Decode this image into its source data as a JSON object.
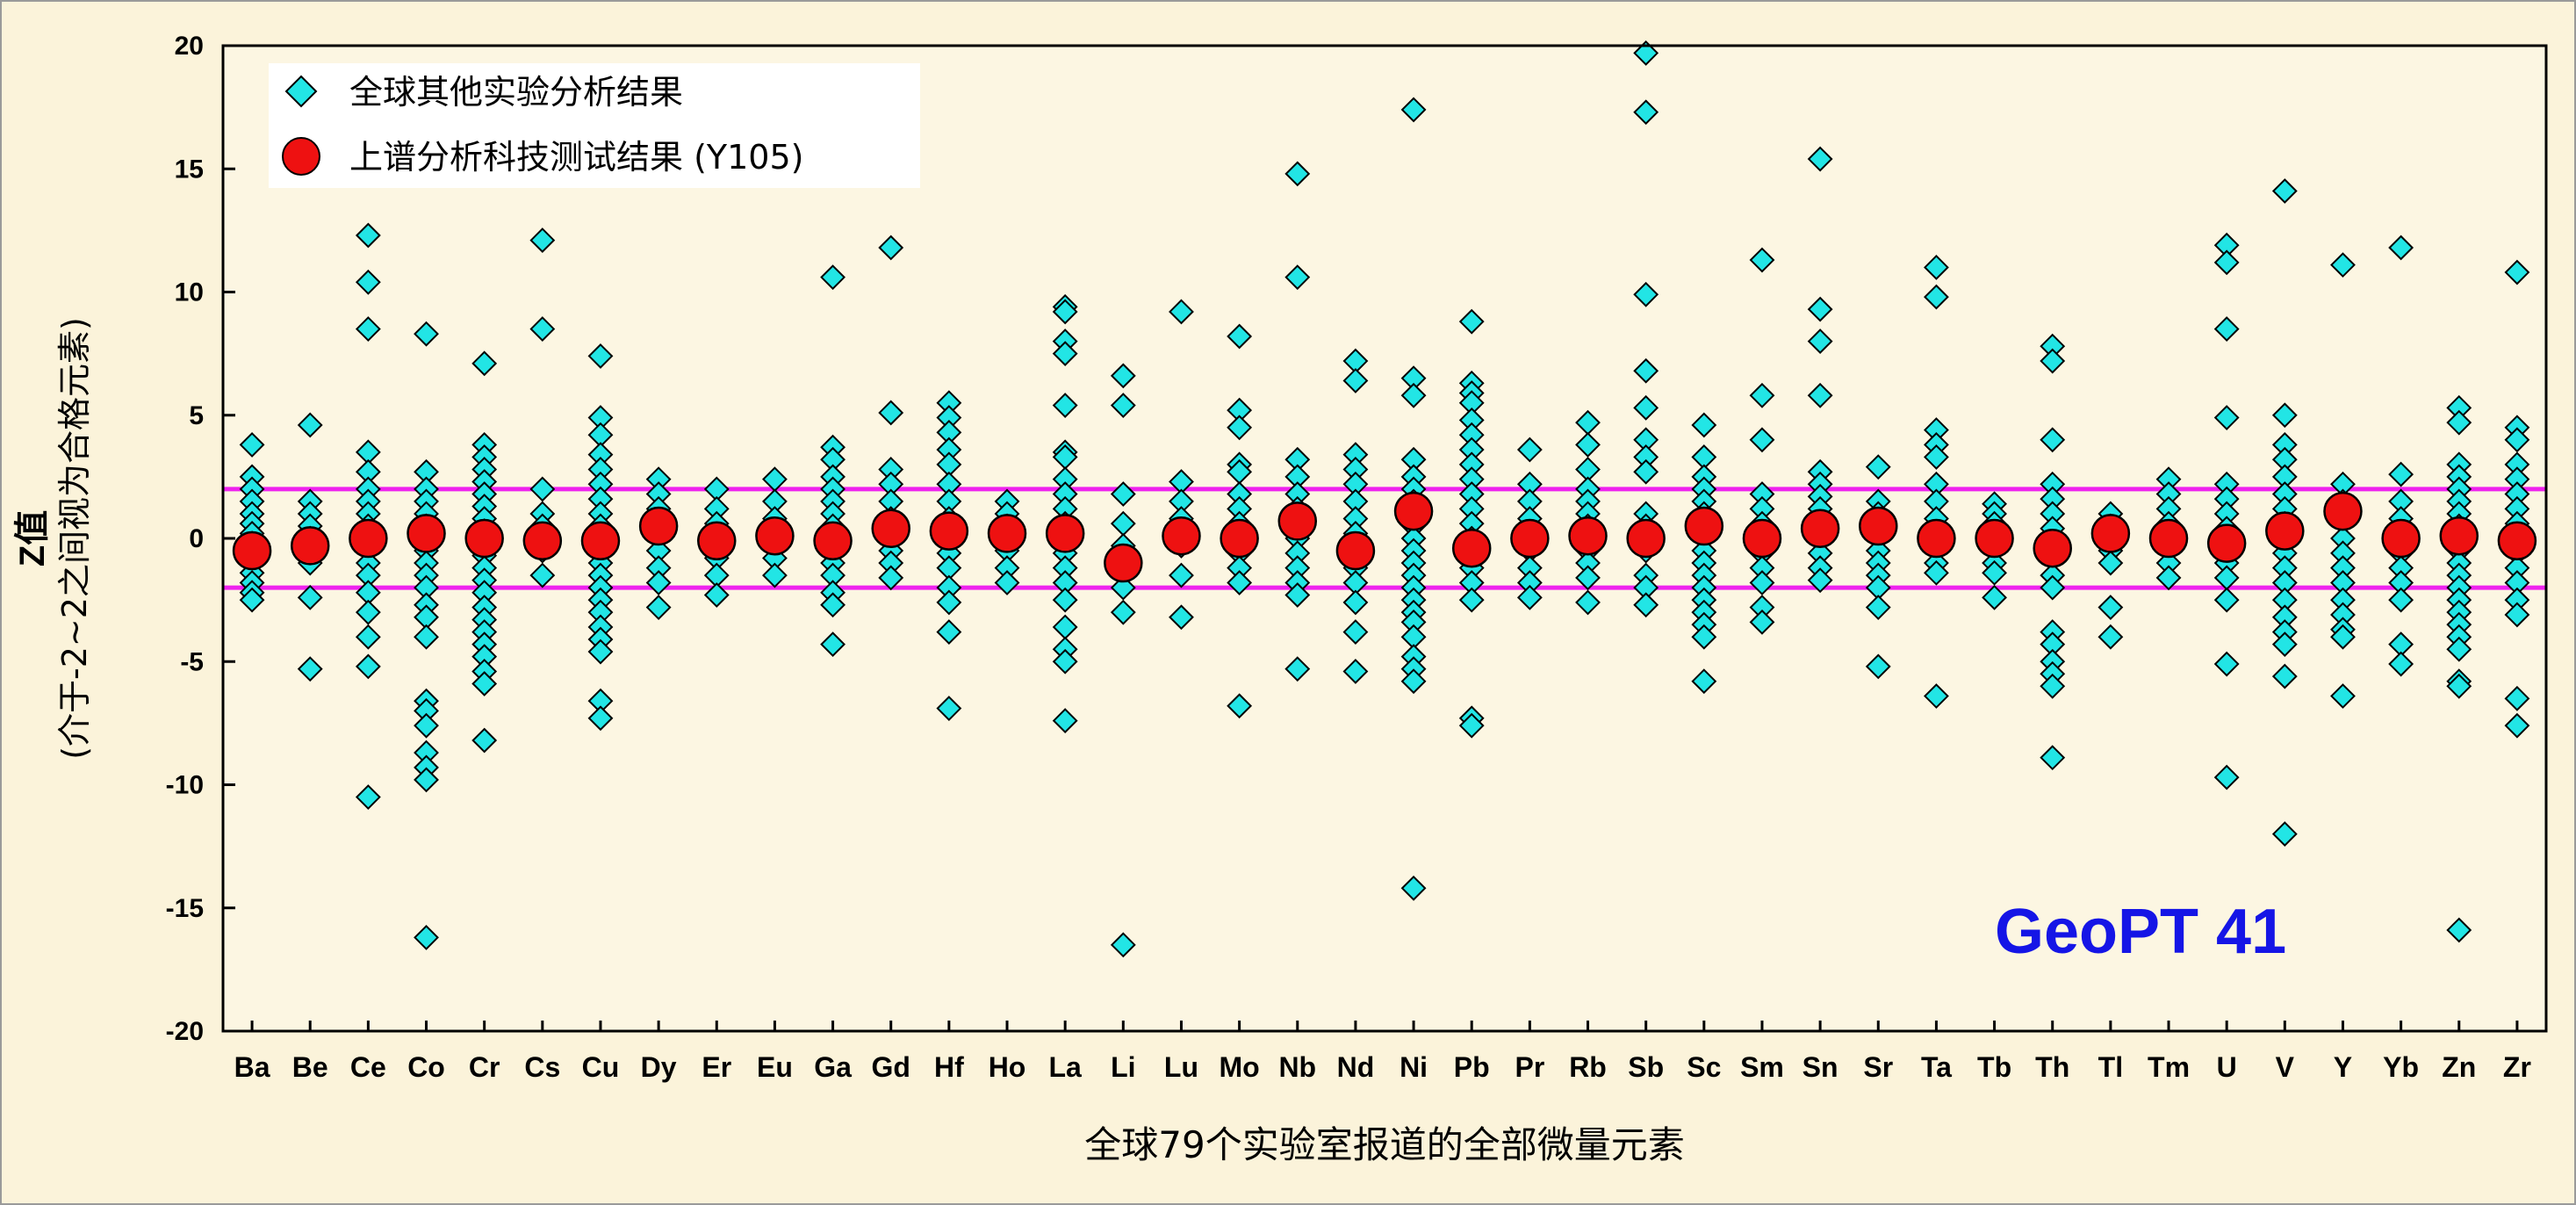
{
  "chart_data": {
    "type": "scatter",
    "xlabel": "全球79个实验室报道的全部微量元素",
    "ylabel_line1": "Z值",
    "ylabel_line2": "(介于-2~2之间视为合格元素)",
    "ylim": [
      -20,
      20
    ],
    "yticks": [
      20,
      15,
      10,
      5,
      0,
      -5,
      -10,
      -15,
      -20
    ],
    "tick_labels": [
      "20",
      "15",
      "10",
      "5",
      "0",
      "-5",
      "-10",
      "-15",
      "-20"
    ],
    "reference_lines": [
      2,
      -2
    ],
    "reference_color": "#ee22ee",
    "annotation": "GeoPT 41",
    "categories": [
      "Ba",
      "Be",
      "Ce",
      "Co",
      "Cr",
      "Cs",
      "Cu",
      "Dy",
      "Er",
      "Eu",
      "Ga",
      "Gd",
      "Hf",
      "Ho",
      "La",
      "Li",
      "Lu",
      "Mo",
      "Nb",
      "Nd",
      "Ni",
      "Pb",
      "Pr",
      "Rb",
      "Sb",
      "Sc",
      "Sm",
      "Sn",
      "Sr",
      "Ta",
      "Tb",
      "Th",
      "Tl",
      "Tm",
      "U",
      "V",
      "Y",
      "Yb",
      "Zn",
      "Zr"
    ],
    "series": [
      {
        "name": "全球其他实验分析结果",
        "marker": "diamond",
        "color": "#22e5e5",
        "values": [
          [
            3.8,
            2.5,
            2.0,
            1.5,
            1.0,
            0.6,
            0.2,
            -0.2,
            -0.6,
            -1.0,
            -1.4,
            -1.8,
            -2.2,
            -2.5
          ],
          [
            4.6,
            1.5,
            1.0,
            0.5,
            0.0,
            -0.5,
            -1.0,
            -2.4,
            -5.3
          ],
          [
            12.3,
            10.4,
            8.5,
            3.5,
            2.7,
            2.0,
            1.5,
            1.0,
            0.5,
            0.0,
            -0.5,
            -1.0,
            -1.5,
            -2.2,
            -3.0,
            -4.0,
            -5.2,
            -10.5
          ],
          [
            8.3,
            2.7,
            2.0,
            1.5,
            1.0,
            0.5,
            0.0,
            -0.5,
            -1.0,
            -1.5,
            -2.0,
            -2.7,
            -3.2,
            -4.0,
            -6.6,
            -7.0,
            -7.6,
            -8.7,
            -9.3,
            -9.8,
            -16.2
          ],
          [
            7.1,
            3.8,
            3.3,
            2.8,
            2.3,
            1.8,
            1.3,
            0.8,
            0.3,
            -0.2,
            -0.7,
            -1.2,
            -1.7,
            -2.2,
            -2.8,
            -3.3,
            -3.8,
            -4.3,
            -4.8,
            -5.4,
            -5.9,
            -8.2
          ],
          [
            12.1,
            8.5,
            2.0,
            1.0,
            0.5,
            -0.5,
            -1.5
          ],
          [
            7.4,
            4.9,
            4.2,
            3.4,
            2.8,
            2.2,
            1.6,
            1.0,
            0.5,
            0.0,
            -0.5,
            -1.0,
            -1.5,
            -2.0,
            -2.5,
            -3.0,
            -3.6,
            -4.1,
            -4.6,
            -6.6,
            -7.3
          ],
          [
            2.4,
            1.8,
            1.2,
            0.5,
            -0.5,
            -1.2,
            -1.8,
            -2.8
          ],
          [
            2.0,
            1.2,
            0.6,
            -0.2,
            -0.8,
            -1.5,
            -2.3
          ],
          [
            2.4,
            1.5,
            0.8,
            -0.3,
            -0.8,
            -1.5
          ],
          [
            10.6,
            3.7,
            3.2,
            2.5,
            2.0,
            1.5,
            1.0,
            0.5,
            0.0,
            -0.5,
            -1.0,
            -1.5,
            -2.2,
            -2.7,
            -4.3
          ],
          [
            11.8,
            5.1,
            2.8,
            2.2,
            1.5,
            0.8,
            0.2,
            -0.5,
            -1.0,
            -1.6
          ],
          [
            5.5,
            4.9,
            4.3,
            3.6,
            3.0,
            2.2,
            1.5,
            0.8,
            0.2,
            -0.6,
            -1.2,
            -2.0,
            -2.6,
            -3.8,
            -6.9
          ],
          [
            1.5,
            1.0,
            0.5,
            -0.5,
            -1.2,
            -1.8
          ],
          [
            9.4,
            9.2,
            8.0,
            7.5,
            5.4,
            3.5,
            3.3,
            2.4,
            1.8,
            1.2,
            0.6,
            0.0,
            -0.6,
            -1.2,
            -1.8,
            -2.5,
            -3.6,
            -4.5,
            -5.0,
            -7.4
          ],
          [
            6.6,
            5.4,
            1.8,
            0.6,
            -0.3,
            -1.2,
            -2.0,
            -3.0,
            -16.5
          ],
          [
            9.2,
            2.3,
            1.5,
            0.8,
            -0.3,
            -1.5,
            -3.2
          ],
          [
            8.2,
            5.2,
            4.5,
            3.0,
            2.7,
            1.8,
            1.2,
            0.6,
            0.0,
            -0.6,
            -1.2,
            -1.8,
            -6.8
          ],
          [
            14.8,
            10.6,
            3.2,
            2.5,
            1.8,
            1.2,
            0.6,
            0.0,
            -0.6,
            -1.2,
            -1.8,
            -2.3,
            -5.3
          ],
          [
            7.2,
            6.4,
            3.4,
            2.8,
            2.2,
            1.5,
            0.8,
            0.2,
            -0.5,
            -1.2,
            -1.8,
            -2.6,
            -3.8,
            -5.4
          ],
          [
            17.4,
            6.5,
            5.8,
            3.2,
            2.5,
            2.0,
            1.5,
            1.0,
            0.5,
            0.0,
            -0.5,
            -1.0,
            -1.5,
            -2.0,
            -2.5,
            -3.0,
            -3.4,
            -4.0,
            -4.8,
            -5.3,
            -5.8,
            -14.2
          ],
          [
            8.8,
            6.3,
            5.9,
            5.5,
            4.8,
            4.2,
            3.6,
            3.0,
            2.4,
            1.8,
            1.2,
            0.6,
            0.0,
            -0.6,
            -1.2,
            -1.8,
            -2.5,
            -7.3,
            -7.6
          ],
          [
            3.6,
            2.2,
            1.5,
            0.8,
            0.2,
            -0.5,
            -1.2,
            -1.8,
            -2.4
          ],
          [
            4.7,
            3.8,
            2.8,
            2.0,
            1.5,
            1.0,
            0.5,
            0.0,
            -0.5,
            -1.0,
            -1.6,
            -2.6
          ],
          [
            19.7,
            17.3,
            9.9,
            6.8,
            5.3,
            4.0,
            3.3,
            2.7,
            1.0,
            0.5,
            0.0,
            -0.5,
            -1.5,
            -2.0,
            -2.7
          ],
          [
            4.6,
            3.3,
            2.5,
            2.0,
            1.5,
            1.0,
            0.5,
            0.0,
            -0.5,
            -1.0,
            -1.5,
            -2.0,
            -2.5,
            -3.0,
            -3.5,
            -4.0,
            -5.8
          ],
          [
            11.3,
            5.8,
            4.0,
            1.8,
            1.2,
            0.6,
            -0.6,
            -1.2,
            -1.8,
            -2.8,
            -3.4
          ],
          [
            15.4,
            9.3,
            8.0,
            5.8,
            2.7,
            2.2,
            1.7,
            1.2,
            0.6,
            0.0,
            -0.6,
            -1.2,
            -1.7
          ],
          [
            2.9,
            1.5,
            1.0,
            0.0,
            -0.5,
            -1.0,
            -1.5,
            -2.0,
            -2.8,
            -5.2
          ],
          [
            11.0,
            9.8,
            4.4,
            3.8,
            3.3,
            2.2,
            1.5,
            0.8,
            0.2,
            -0.4,
            -1.0,
            -1.4,
            -6.4
          ],
          [
            1.4,
            1.0,
            0.6,
            0.0,
            -0.5,
            -1.0,
            -1.4,
            -2.4
          ],
          [
            7.8,
            7.2,
            4.0,
            2.2,
            1.6,
            1.0,
            0.4,
            -0.2,
            -0.8,
            -1.5,
            -2.0,
            -3.8,
            -4.3,
            -5.0,
            -5.5,
            -6.0,
            -8.9
          ],
          [
            1.0,
            0.5,
            -0.5,
            -1.0,
            -2.8,
            -4.0
          ],
          [
            2.4,
            1.8,
            1.2,
            0.6,
            -0.4,
            -1.0,
            -1.6
          ],
          [
            11.9,
            11.2,
            8.5,
            4.9,
            2.2,
            1.6,
            1.0,
            0.4,
            -0.3,
            -1.0,
            -1.6,
            -2.5,
            -5.1,
            -9.7
          ],
          [
            14.1,
            5.0,
            3.8,
            3.2,
            2.5,
            1.8,
            1.2,
            0.6,
            0.0,
            -0.6,
            -1.2,
            -1.8,
            -2.5,
            -3.2,
            -3.8,
            -4.3,
            -5.6,
            -12.0
          ],
          [
            11.1,
            2.2,
            1.5,
            0.8,
            0.0,
            -0.6,
            -1.2,
            -1.8,
            -2.5,
            -3.1,
            -3.7,
            -4.0,
            -6.4
          ],
          [
            11.8,
            2.6,
            1.5,
            0.8,
            0.0,
            -0.6,
            -1.2,
            -1.8,
            -2.5,
            -4.3,
            -5.1
          ],
          [
            5.3,
            4.7,
            3.0,
            2.5,
            2.0,
            1.5,
            1.0,
            0.5,
            0.0,
            -0.5,
            -1.0,
            -1.5,
            -2.0,
            -2.5,
            -3.0,
            -3.5,
            -4.0,
            -4.5,
            -5.8,
            -6.0,
            -15.9
          ],
          [
            10.8,
            4.5,
            4.0,
            3.0,
            2.4,
            1.8,
            1.2,
            0.6,
            0.0,
            -0.6,
            -1.2,
            -1.8,
            -2.5,
            -3.1,
            -6.5,
            -7.6
          ]
        ]
      },
      {
        "name": "上谱分析科技测试结果 (Y105)",
        "marker": "circle",
        "color": "#ee1111",
        "values": [
          -0.5,
          -0.3,
          0.0,
          0.2,
          0.0,
          -0.1,
          -0.1,
          0.5,
          -0.1,
          0.1,
          -0.1,
          0.4,
          0.3,
          0.2,
          0.2,
          -1.0,
          0.1,
          0.0,
          0.7,
          -0.5,
          1.1,
          -0.4,
          0.0,
          0.1,
          0.0,
          0.5,
          0.0,
          0.4,
          0.5,
          0.0,
          0.0,
          -0.4,
          0.2,
          0.0,
          -0.2,
          0.3,
          1.1,
          0.0,
          0.1,
          -0.1
        ]
      }
    ]
  }
}
